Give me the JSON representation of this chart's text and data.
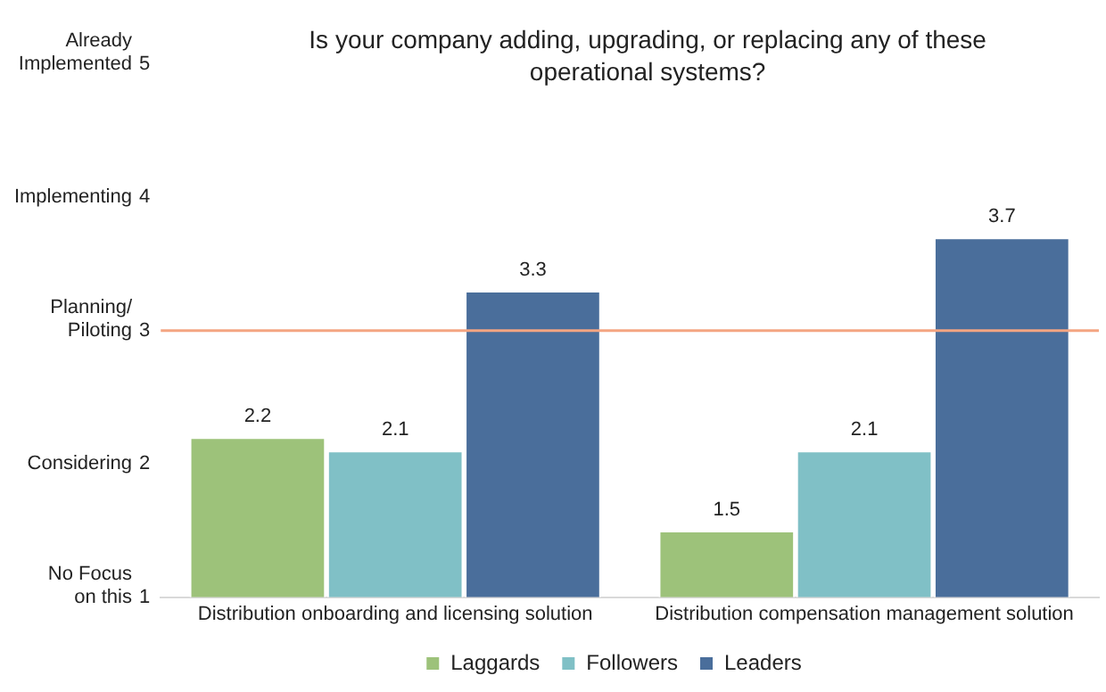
{
  "chart_data": {
    "type": "bar",
    "title": "Is your company adding, upgrading, or replacing any of these operational systems?",
    "categories": [
      "Distribution onboarding and licensing solution",
      "Distribution compensation management solution"
    ],
    "series": [
      {
        "name": "Laggards",
        "color": "#9dc27a",
        "values": [
          2.2,
          1.5
        ]
      },
      {
        "name": "Followers",
        "color": "#80c0c6",
        "values": [
          2.1,
          2.1
        ]
      },
      {
        "name": "Leaders",
        "color": "#4a6e9b",
        "values": [
          3.3,
          3.7
        ]
      }
    ],
    "ylim": [
      1,
      5
    ],
    "yticks": [
      1,
      2,
      3,
      4,
      5
    ],
    "annotations": [
      "No Focus on this",
      "Considering",
      "Planning/ Piloting",
      "Implementing",
      "Already Implemented"
    ],
    "ref_lines": [
      {
        "axis": "y",
        "value": 3,
        "color": "#f4a582"
      }
    ],
    "data_labels": true,
    "grid": false,
    "legend": "bottom"
  }
}
